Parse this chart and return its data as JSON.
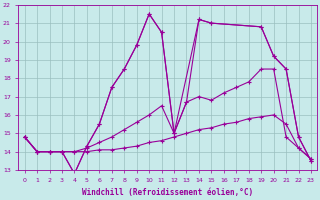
{
  "xlabel": "Windchill (Refroidissement éolien,°C)",
  "xlim": [
    -0.5,
    23.5
  ],
  "ylim": [
    13,
    22
  ],
  "yticks": [
    13,
    14,
    15,
    16,
    17,
    18,
    19,
    20,
    21,
    22
  ],
  "xticks": [
    0,
    1,
    2,
    3,
    4,
    5,
    6,
    7,
    8,
    9,
    10,
    11,
    12,
    13,
    14,
    15,
    16,
    17,
    18,
    19,
    20,
    21,
    22,
    23
  ],
  "bg_color": "#c8eaea",
  "grid_color": "#9bbfbf",
  "line_color": "#990099",
  "lines": [
    {
      "x": [
        0,
        1,
        2,
        3,
        4,
        5,
        6,
        7,
        8,
        9,
        10,
        11,
        12,
        13,
        14,
        15,
        16,
        17,
        18,
        19,
        20,
        21,
        22,
        23
      ],
      "y": [
        14.8,
        14.0,
        14.0,
        14.0,
        14.0,
        14.0,
        14.1,
        14.1,
        14.2,
        14.3,
        14.5,
        14.6,
        14.8,
        15.0,
        15.2,
        15.3,
        15.5,
        15.6,
        15.8,
        15.9,
        16.0,
        15.5,
        14.2,
        13.6
      ]
    },
    {
      "x": [
        0,
        1,
        2,
        3,
        4,
        5,
        6,
        7,
        8,
        9,
        10,
        11,
        12,
        13,
        14,
        15,
        16,
        17,
        18,
        19,
        20,
        21,
        22,
        23
      ],
      "y": [
        14.8,
        14.0,
        14.0,
        14.0,
        14.0,
        14.2,
        14.5,
        14.8,
        15.2,
        15.6,
        16.0,
        16.5,
        15.0,
        16.7,
        17.0,
        16.8,
        17.2,
        17.5,
        17.8,
        18.5,
        18.5,
        14.8,
        14.2,
        13.6
      ]
    },
    {
      "x": [
        0,
        1,
        2,
        3,
        4,
        5,
        6,
        7,
        8,
        9,
        10,
        11,
        12,
        14,
        15,
        19,
        20,
        21,
        22,
        23
      ],
      "y": [
        14.8,
        14.0,
        14.0,
        14.0,
        12.8,
        14.3,
        15.5,
        17.5,
        18.5,
        19.8,
        21.5,
        20.5,
        15.0,
        21.2,
        21.0,
        20.8,
        19.2,
        18.5,
        14.8,
        13.5
      ]
    },
    {
      "x": [
        0,
        1,
        2,
        3,
        4,
        5,
        6,
        7,
        8,
        9,
        10,
        11,
        12,
        13,
        14,
        15,
        19,
        20,
        21,
        22,
        23
      ],
      "y": [
        14.8,
        14.0,
        14.0,
        14.0,
        12.8,
        14.3,
        15.5,
        17.5,
        18.5,
        19.8,
        21.5,
        20.5,
        15.0,
        16.7,
        21.2,
        21.0,
        20.8,
        19.2,
        18.5,
        14.8,
        13.5
      ]
    }
  ]
}
